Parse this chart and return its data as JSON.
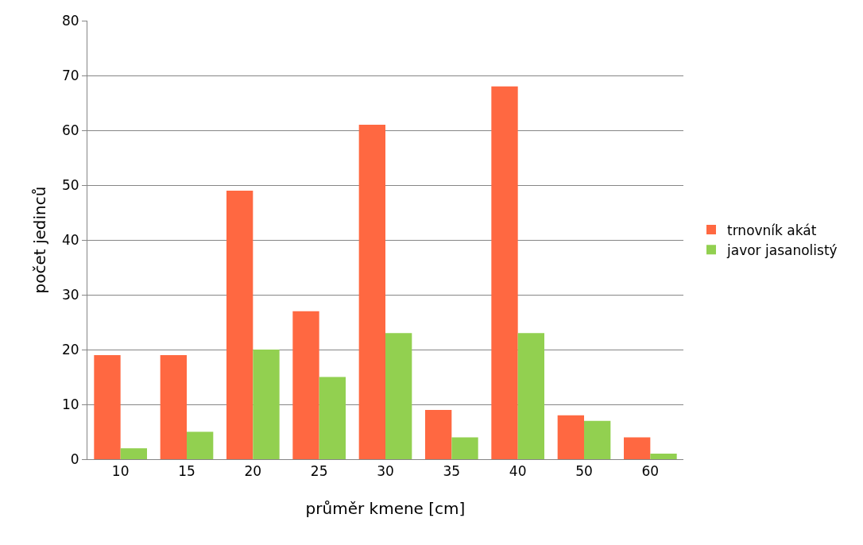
{
  "chart_data": {
    "type": "bar",
    "xlabel": "průměr kmene [cm]",
    "ylabel": "počet jedinců",
    "categories": [
      "10",
      "15",
      "20",
      "25",
      "30",
      "35",
      "40",
      "50",
      "60"
    ],
    "series": [
      {
        "name": "trnovník akát",
        "color": "#ff6841",
        "values": [
          19,
          19,
          49,
          27,
          61,
          9,
          68,
          8,
          4
        ]
      },
      {
        "name": "javor jasanolistý",
        "color": "#92d050",
        "values": [
          2,
          5,
          20,
          15,
          23,
          4,
          23,
          7,
          1
        ]
      }
    ],
    "ylim": [
      0,
      80
    ],
    "yticks": [
      0,
      10,
      20,
      30,
      40,
      50,
      60,
      70,
      80
    ],
    "grid": "y",
    "legend": "right"
  }
}
